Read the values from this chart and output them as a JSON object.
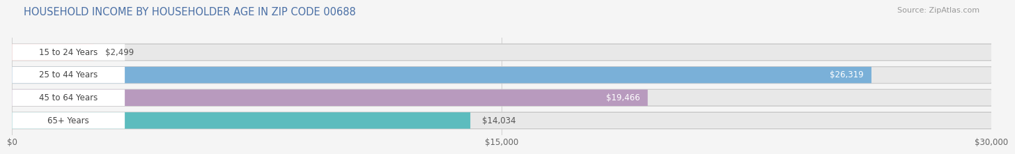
{
  "title": "HOUSEHOLD INCOME BY HOUSEHOLDER AGE IN ZIP CODE 00688",
  "source": "Source: ZipAtlas.com",
  "categories": [
    "15 to 24 Years",
    "25 to 44 Years",
    "45 to 64 Years",
    "65+ Years"
  ],
  "values": [
    2499,
    26319,
    19466,
    14034
  ],
  "bar_colors": [
    "#f0a8a4",
    "#7ab0d8",
    "#b89abe",
    "#5cbcbe"
  ],
  "bar_bg_color": "#e8e8e8",
  "value_labels": [
    "$2,499",
    "$26,319",
    "$19,466",
    "$14,034"
  ],
  "value_inside": [
    false,
    true,
    true,
    false
  ],
  "x_ticks": [
    0,
    15000,
    30000
  ],
  "x_tick_labels": [
    "$0",
    "$15,000",
    "$30,000"
  ],
  "xlim": [
    0,
    30000
  ],
  "title_color": "#4a6fa5",
  "source_color": "#999999",
  "label_color": "#444444",
  "value_color_outside": "#555555",
  "value_color_inside": "#ffffff",
  "bg_color": "#f5f5f5",
  "title_fontsize": 10.5,
  "source_fontsize": 8,
  "label_fontsize": 8.5,
  "value_fontsize": 8.5,
  "tick_fontsize": 8.5
}
